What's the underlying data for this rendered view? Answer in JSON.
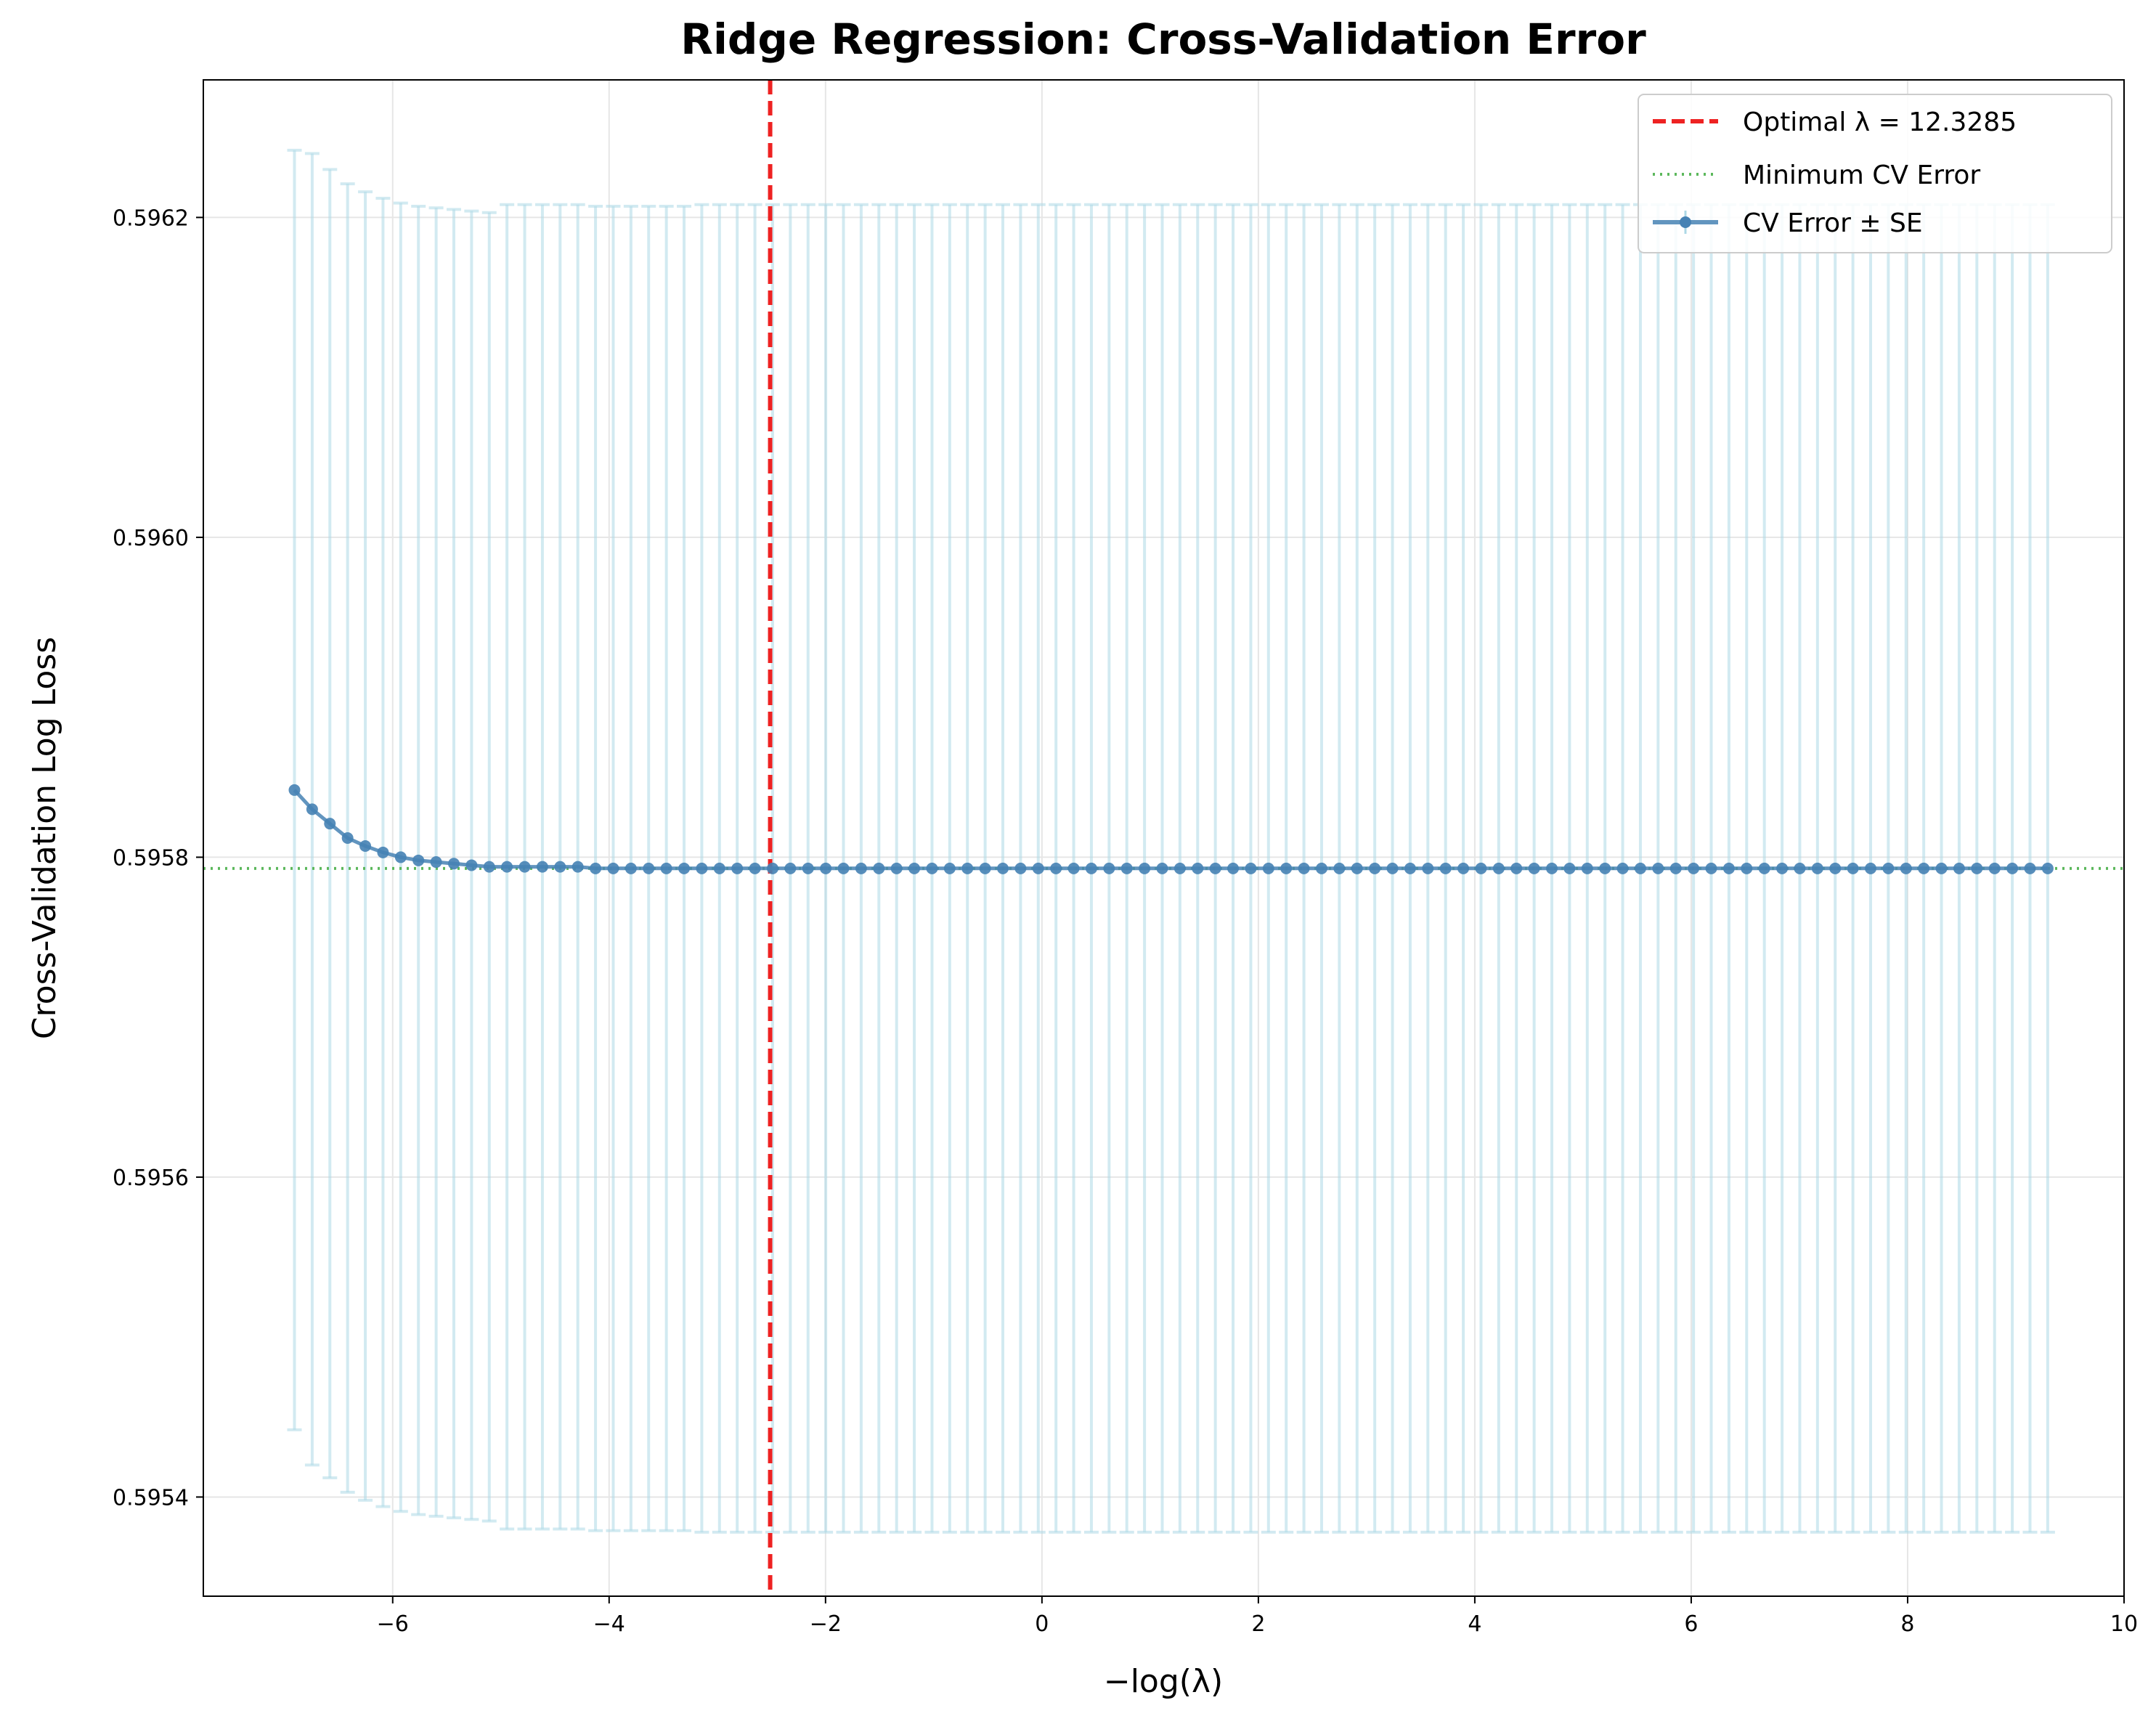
{
  "chart_data": {
    "type": "line",
    "title": "Ridge Regression: Cross-Validation Error",
    "xlabel": "−log(λ)",
    "ylabel": "Cross-Validation Log Loss",
    "xlim": [
      -7.75,
      10
    ],
    "ylim": [
      0.595338,
      0.596286
    ],
    "x_ticks": [
      -6,
      -4,
      -2,
      0,
      2,
      4,
      6,
      8,
      10
    ],
    "x_tick_labels": [
      "−6",
      "−4",
      "−2",
      "0",
      "2",
      "4",
      "6",
      "8",
      "10"
    ],
    "y_ticks": [
      0.5954,
      0.5956,
      0.5958,
      0.596,
      0.5962
    ],
    "y_tick_labels": [
      "0.5954",
      "0.5956",
      "0.5958",
      "0.5960",
      "0.5962"
    ],
    "grid": true,
    "legend_position": "top-right",
    "series": [
      {
        "name": "CV Error ± SE",
        "color": "#4682b4",
        "errorbar_color": "#add8e6",
        "x": [
          -6.9078,
          -6.7441,
          -6.5805,
          -6.4168,
          -6.2531,
          -6.0895,
          -5.9258,
          -5.7622,
          -5.5985,
          -5.4348,
          -5.2712,
          -5.1075,
          -4.9439,
          -4.7802,
          -4.6165,
          -4.4529,
          -4.2892,
          -4.1256,
          -3.9619,
          -3.7982,
          -3.6346,
          -3.4709,
          -3.3073,
          -3.1436,
          -2.9799,
          -2.8163,
          -2.6526,
          -2.489,
          -2.3253,
          -2.1616,
          -1.998,
          -1.8343,
          -1.6707,
          -1.507,
          -1.3433,
          -1.1797,
          -1.016,
          -0.8524,
          -0.6887,
          -0.525,
          -0.3614,
          -0.1977,
          -0.0341,
          0.1296,
          0.2933,
          0.4569,
          0.6206,
          0.7842,
          0.9479,
          1.1116,
          1.2752,
          1.4389,
          1.6025,
          1.7662,
          1.9299,
          2.0935,
          2.2572,
          2.4208,
          2.5845,
          2.7482,
          2.9118,
          3.0755,
          3.2391,
          3.4028,
          3.5665,
          3.7301,
          3.8938,
          4.0574,
          4.2211,
          4.3848,
          4.5484,
          4.7121,
          4.8757,
          5.0394,
          5.2031,
          5.3667,
          5.5304,
          5.694,
          5.8577,
          6.0214,
          6.185,
          6.3487,
          6.5123,
          6.676,
          6.8397,
          7.0033,
          7.167,
          7.3306,
          7.4943,
          7.658,
          7.8216,
          7.9853,
          8.1489,
          8.3126,
          8.4763,
          8.6399,
          8.8036,
          8.9672,
          9.1309,
          9.2946
        ],
        "y": [
          0.595842,
          0.59583,
          0.595821,
          0.595812,
          0.595807,
          0.595803,
          0.5958,
          0.595798,
          0.595797,
          0.595796,
          0.595795,
          0.595794,
          0.595794,
          0.595794,
          0.595794,
          0.595794,
          0.595794,
          0.595793,
          0.595793,
          0.595793,
          0.595793,
          0.595793,
          0.595793,
          0.595793,
          0.595793,
          0.595793,
          0.595793,
          0.595793,
          0.595793,
          0.595793,
          0.595793,
          0.595793,
          0.595793,
          0.595793,
          0.595793,
          0.595793,
          0.595793,
          0.595793,
          0.595793,
          0.595793,
          0.595793,
          0.595793,
          0.595793,
          0.595793,
          0.595793,
          0.595793,
          0.595793,
          0.595793,
          0.595793,
          0.595793,
          0.595793,
          0.595793,
          0.595793,
          0.595793,
          0.595793,
          0.595793,
          0.595793,
          0.595793,
          0.595793,
          0.595793,
          0.595793,
          0.595793,
          0.595793,
          0.595793,
          0.595793,
          0.595793,
          0.595793,
          0.595793,
          0.595793,
          0.595793,
          0.595793,
          0.595793,
          0.595793,
          0.595793,
          0.595793,
          0.595793,
          0.595793,
          0.595793,
          0.595793,
          0.595793,
          0.595793,
          0.595793,
          0.595793,
          0.595793,
          0.595793,
          0.595793,
          0.595793,
          0.595793,
          0.595793,
          0.595793,
          0.595793,
          0.595793,
          0.595793,
          0.595793,
          0.595793,
          0.595793,
          0.595793,
          0.595793,
          0.595793,
          0.595793
        ],
        "se": [
          0.0004,
          0.00041,
          0.000409,
          0.000409,
          0.000409,
          0.000409,
          0.000409,
          0.000409,
          0.000409,
          0.000409,
          0.000409,
          0.000409,
          0.000414,
          0.000414,
          0.000414,
          0.000414,
          0.000414,
          0.000414,
          0.000414,
          0.000414,
          0.000414,
          0.000414,
          0.000414,
          0.000415,
          0.000415,
          0.000415,
          0.000415,
          0.000415,
          0.000415,
          0.000415,
          0.000415,
          0.000415,
          0.000415,
          0.000415,
          0.000415,
          0.000415,
          0.000415,
          0.000415,
          0.000415,
          0.000415,
          0.000415,
          0.000415,
          0.000415,
          0.000415,
          0.000415,
          0.000415,
          0.000415,
          0.000415,
          0.000415,
          0.000415,
          0.000415,
          0.000415,
          0.000415,
          0.000415,
          0.000415,
          0.000415,
          0.000415,
          0.000415,
          0.000415,
          0.000415,
          0.000415,
          0.000415,
          0.000415,
          0.000415,
          0.000415,
          0.000415,
          0.000415,
          0.000415,
          0.000415,
          0.000415,
          0.000415,
          0.000415,
          0.000415,
          0.000415,
          0.000415,
          0.000415,
          0.000415,
          0.000415,
          0.000415,
          0.000415,
          0.000415,
          0.000415,
          0.000415,
          0.000415,
          0.000415,
          0.000415,
          0.000415,
          0.000415,
          0.000415,
          0.000415,
          0.000415,
          0.000415,
          0.000415,
          0.000415,
          0.000415,
          0.000415,
          0.000415,
          0.000415,
          0.000415,
          0.000415
        ]
      }
    ],
    "optimal_line": {
      "label": "Optimal λ = 12.3285",
      "x": -2.5118,
      "color": "#ee2222",
      "style": "dashed"
    },
    "min_line": {
      "label": "Minimum CV Error",
      "y": 0.595793,
      "color": "#5cb85c",
      "style": "dotted"
    }
  }
}
